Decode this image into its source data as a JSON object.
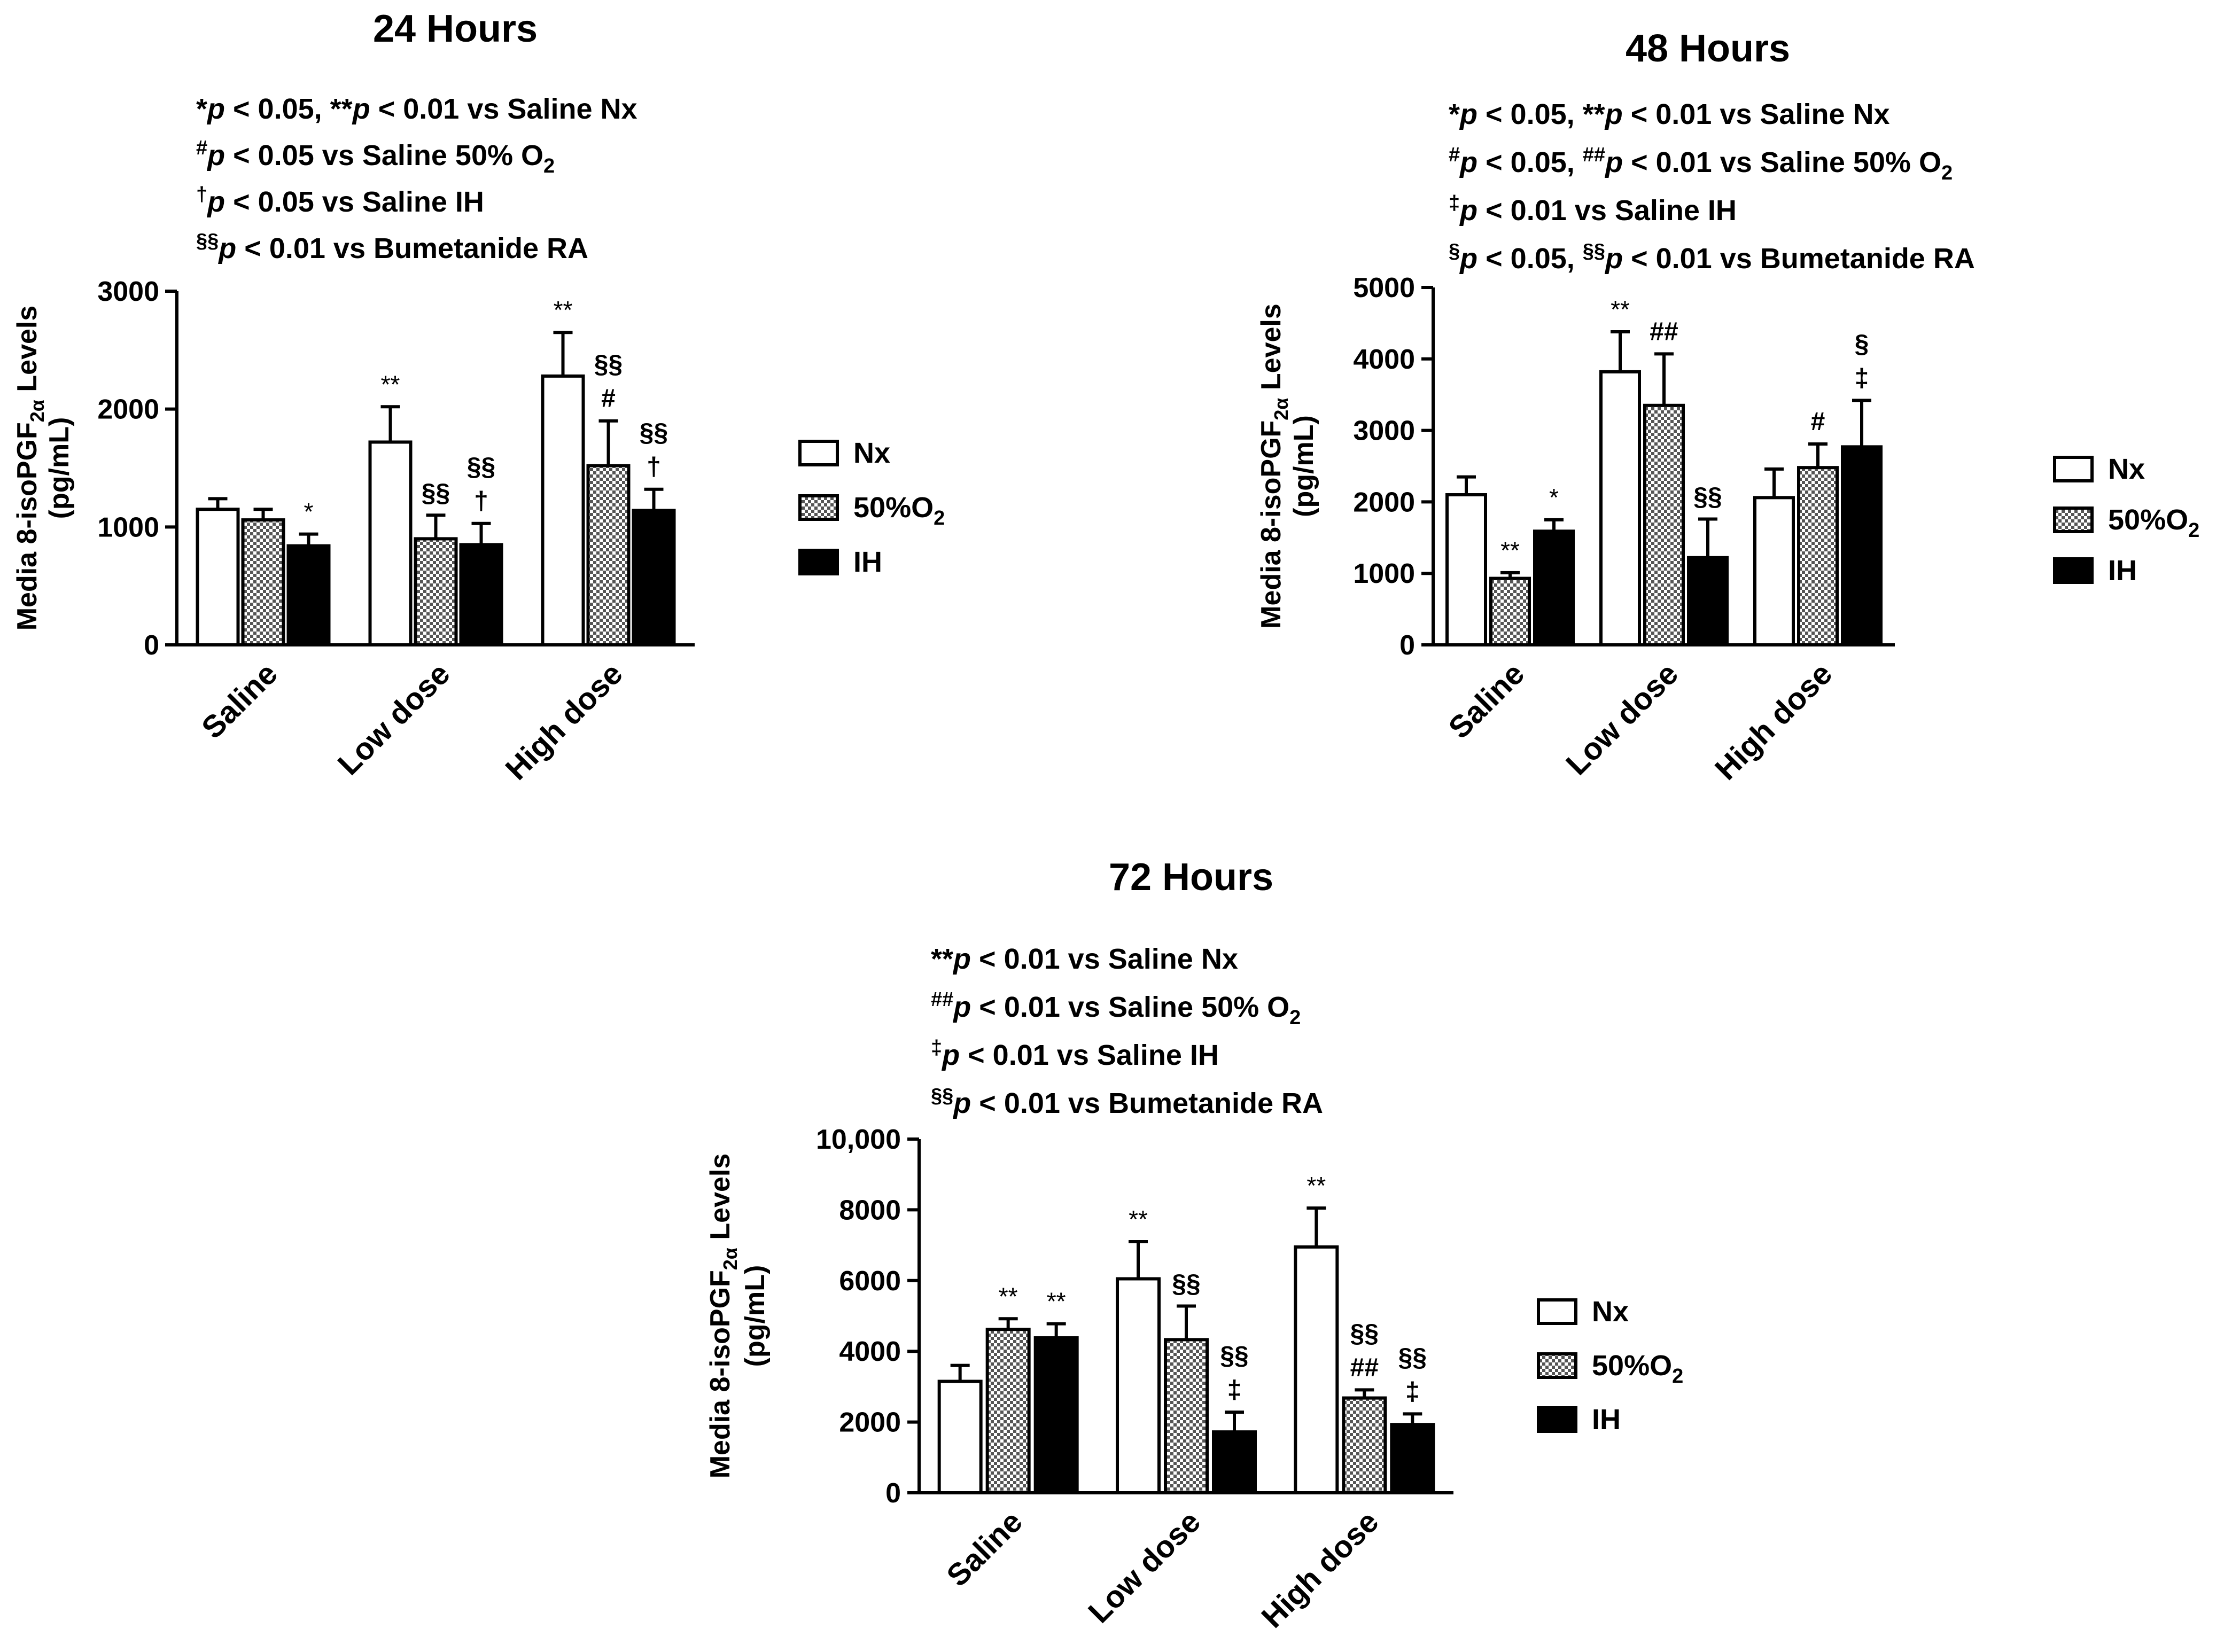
{
  "colors": {
    "ink": "#000000",
    "paper": "#ffffff",
    "dots": "#555555"
  },
  "legend": [
    {
      "name": "Nx",
      "style": "open"
    },
    {
      "name": "50%O",
      "sub": "2",
      "style": "dotted"
    },
    {
      "name": "IH",
      "style": "solid"
    }
  ],
  "chart_data": [
    {
      "type": "bar",
      "title": "24 Hours",
      "categories": [
        "Saline",
        "Low dose",
        "High dose"
      ],
      "series": [
        {
          "name": "Nx",
          "values": [
            1150,
            1720,
            2280
          ],
          "errors": [
            90,
            300,
            370
          ]
        },
        {
          "name": "50%O2",
          "values": [
            1060,
            900,
            1520
          ],
          "errors": [
            90,
            200,
            380
          ]
        },
        {
          "name": "IH",
          "values": [
            840,
            850,
            1140
          ],
          "errors": [
            100,
            180,
            180
          ]
        }
      ],
      "annotations": [
        [
          "",
          "",
          "*"
        ],
        [
          "**",
          "§§",
          "§§|†"
        ],
        [
          "**",
          "§§|#",
          "§§|†"
        ]
      ],
      "notes": [
        [
          {
            "t": "*"
          },
          {
            "t": "p",
            "i": 1
          },
          {
            "t": " < 0.05, **"
          },
          {
            "t": "p",
            "i": 1
          },
          {
            "t": " < 0.01 vs Saline Nx"
          }
        ],
        [
          {
            "t": "#",
            "sup": 1
          },
          {
            "t": "p",
            "i": 1
          },
          {
            "t": " < 0.05 vs Saline 50% O"
          },
          {
            "t": "2",
            "sub": 1
          }
        ],
        [
          {
            "t": "†",
            "sup": 1
          },
          {
            "t": "p",
            "i": 1
          },
          {
            "t": " < 0.05 vs Saline IH"
          }
        ],
        [
          {
            "t": "§§",
            "sup": 1
          },
          {
            "t": "p",
            "i": 1
          },
          {
            "t": " < 0.01 vs Bumetanide RA"
          }
        ]
      ],
      "ylabel_line1": "Media 8-isoPGF",
      "ylabel_sub": "2α",
      "ylabel_line1_end": "  Levels",
      "ylabel_line2": "(pg/mL)",
      "ylim": [
        0,
        3000
      ],
      "yticks": [
        0,
        1000,
        2000,
        3000
      ],
      "ytick_labels": [
        "0",
        "1000",
        "2000",
        "3000"
      ]
    },
    {
      "type": "bar",
      "title": "48 Hours",
      "categories": [
        "Saline",
        "Low dose",
        "High dose"
      ],
      "series": [
        {
          "name": "Nx",
          "values": [
            2100,
            3820,
            2060
          ],
          "errors": [
            250,
            560,
            400
          ]
        },
        {
          "name": "50%O2",
          "values": [
            930,
            3350,
            2480
          ],
          "errors": [
            80,
            720,
            330
          ]
        },
        {
          "name": "IH",
          "values": [
            1590,
            1220,
            2770
          ],
          "errors": [
            160,
            540,
            650
          ]
        }
      ],
      "annotations": [
        [
          "",
          "**",
          "*"
        ],
        [
          "**",
          "##",
          "§§"
        ],
        [
          "",
          "#",
          "§|‡"
        ]
      ],
      "notes": [
        [
          {
            "t": "*"
          },
          {
            "t": "p",
            "i": 1
          },
          {
            "t": " < 0.05, **"
          },
          {
            "t": "p",
            "i": 1
          },
          {
            "t": " < 0.01 vs Saline Nx"
          }
        ],
        [
          {
            "t": "#",
            "sup": 1
          },
          {
            "t": "p",
            "i": 1
          },
          {
            "t": " < 0.05, "
          },
          {
            "t": "##",
            "sup": 1
          },
          {
            "t": "p",
            "i": 1
          },
          {
            "t": " < 0.01 vs Saline 50% O"
          },
          {
            "t": "2",
            "sub": 1
          }
        ],
        [
          {
            "t": "‡",
            "sup": 1
          },
          {
            "t": "p",
            "i": 1
          },
          {
            "t": " < 0.01 vs Saline IH"
          }
        ],
        [
          {
            "t": "§",
            "sup": 1
          },
          {
            "t": "p",
            "i": 1
          },
          {
            "t": " < 0.05, "
          },
          {
            "t": "§§",
            "sup": 1
          },
          {
            "t": "p",
            "i": 1
          },
          {
            "t": " < 0.01 vs Bumetanide RA"
          }
        ]
      ],
      "ylabel_line1": "Media 8-isoPGF",
      "ylabel_sub": "2α",
      "ylabel_line1_end": "  Levels",
      "ylabel_line2": "(pg/mL)",
      "ylim": [
        0,
        5000
      ],
      "yticks": [
        0,
        1000,
        2000,
        3000,
        4000,
        5000
      ],
      "ytick_labels": [
        "0",
        "1000",
        "2000",
        "3000",
        "4000",
        "5000"
      ]
    },
    {
      "type": "bar",
      "title": "72 Hours",
      "categories": [
        "Saline",
        "Low dose",
        "High dose"
      ],
      "series": [
        {
          "name": "Nx",
          "values": [
            3150,
            6050,
            6950
          ],
          "errors": [
            450,
            1050,
            1100
          ]
        },
        {
          "name": "50%O2",
          "values": [
            4620,
            4330,
            2680
          ],
          "errors": [
            300,
            950,
            230
          ]
        },
        {
          "name": "IH",
          "values": [
            4380,
            1720,
            1930
          ],
          "errors": [
            400,
            560,
            300
          ]
        }
      ],
      "annotations": [
        [
          "",
          "**",
          "**"
        ],
        [
          "**",
          "§§",
          "§§|‡"
        ],
        [
          "**",
          "§§|##",
          "§§|‡"
        ]
      ],
      "notes": [
        [
          {
            "t": "**"
          },
          {
            "t": "p",
            "i": 1
          },
          {
            "t": " < 0.01 vs Saline Nx"
          }
        ],
        [
          {
            "t": "##",
            "sup": 1
          },
          {
            "t": "p",
            "i": 1
          },
          {
            "t": " < 0.01 vs Saline 50% O"
          },
          {
            "t": "2",
            "sub": 1
          }
        ],
        [
          {
            "t": "‡",
            "sup": 1
          },
          {
            "t": "p",
            "i": 1
          },
          {
            "t": " < 0.01 vs Saline IH"
          }
        ],
        [
          {
            "t": "§§",
            "sup": 1
          },
          {
            "t": "p",
            "i": 1
          },
          {
            "t": " < 0.01 vs Bumetanide RA"
          }
        ]
      ],
      "ylabel_line1": "Media 8-isoPGF",
      "ylabel_sub": "2α",
      "ylabel_line1_end": "  Levels",
      "ylabel_line2": "(pg/mL)",
      "ylim": [
        0,
        10000
      ],
      "yticks": [
        0,
        2000,
        4000,
        6000,
        8000,
        10000
      ],
      "ytick_labels": [
        "0",
        "2000",
        "4000",
        "6000",
        "8000",
        "10,000"
      ]
    }
  ]
}
